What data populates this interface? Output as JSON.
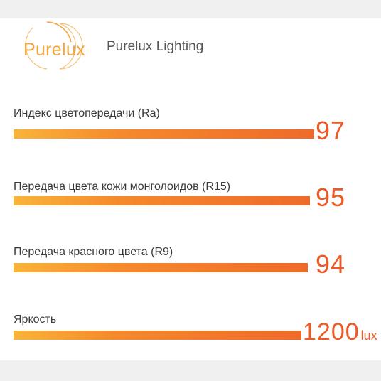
{
  "logo": {
    "text": "Purelux"
  },
  "brand": {
    "name": "Purelux Lighting"
  },
  "metrics": [
    {
      "label": "Индекс цветопередачи  (Ra)",
      "value": "97",
      "unit": ""
    },
    {
      "label": "Передача цвета кожи монголоидов (R15)",
      "value": "95",
      "unit": ""
    },
    {
      "label": "Передача красного цвета (R9)",
      "value": "94",
      "unit": ""
    },
    {
      "label": "Яркость",
      "value": "1200",
      "unit": "lux"
    }
  ],
  "colors": {
    "accent": "#ee5a25",
    "bar_start": "#f9b43a",
    "bar_end": "#ef6a2a",
    "logo": "#f4a53c"
  }
}
